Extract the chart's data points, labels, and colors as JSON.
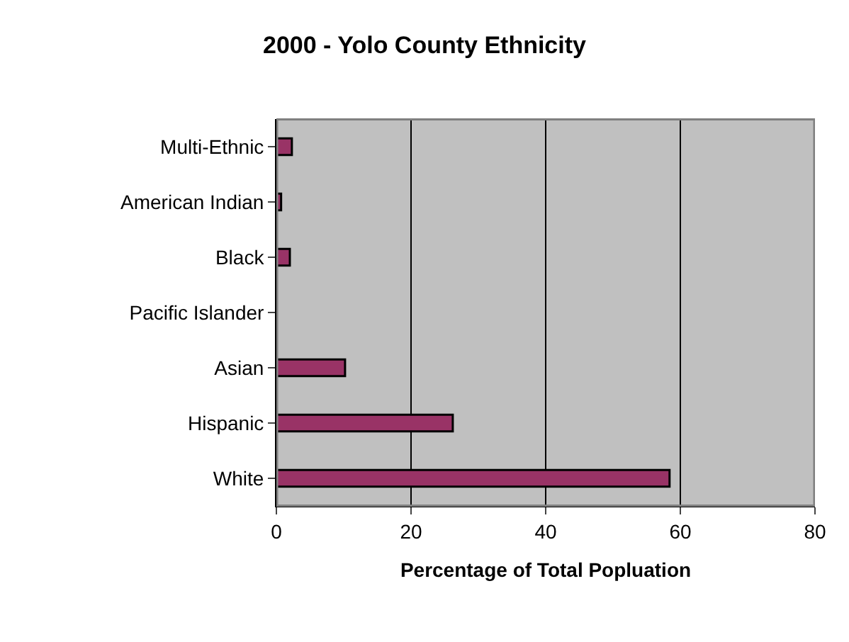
{
  "chart_data": {
    "type": "bar",
    "orientation": "horizontal",
    "title": "2000 - Yolo County Ethnicity",
    "xlabel": "Percentage of Total Popluation",
    "categories": [
      "Multi-Ethnic",
      "American Indian",
      "Black",
      "Pacific Islander",
      "Asian",
      "Hispanic",
      "White"
    ],
    "values": [
      2.3,
      0.7,
      2.0,
      null,
      10.2,
      26.2,
      58.4
    ],
    "color": "#993366",
    "xlim": [
      0,
      80
    ],
    "xticks": [
      0,
      20,
      40,
      60,
      80
    ],
    "grid": "x"
  }
}
